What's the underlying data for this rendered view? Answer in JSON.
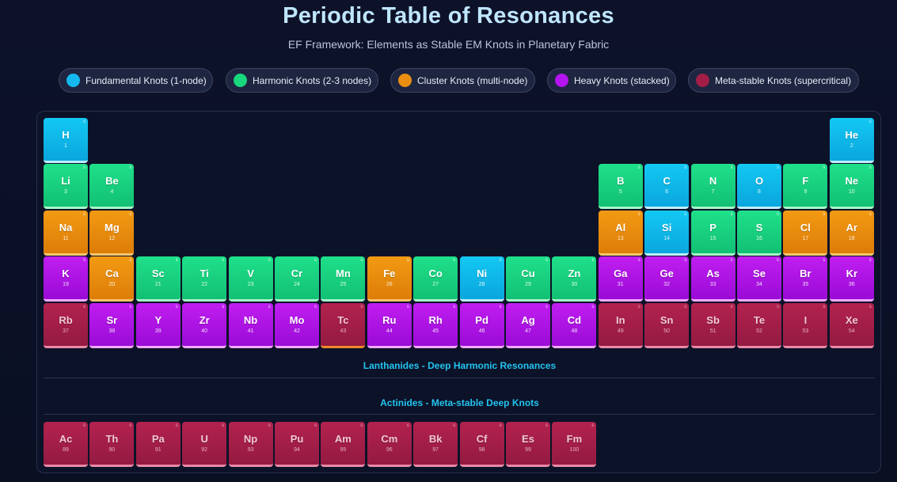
{
  "header": {
    "title": "Periodic Table of Resonances",
    "subtitle": "EF Framework: Elements as Stable EM Knots in Planetary Fabric"
  },
  "legend": [
    {
      "label": "Fundamental Knots (1-node)",
      "color": "#14b8ef"
    },
    {
      "label": "Harmonic Knots (2-3 nodes)",
      "color": "#19d77e"
    },
    {
      "label": "Cluster Knots (multi-node)",
      "color": "#ea8f12"
    },
    {
      "label": "Heavy Knots (stacked)",
      "color": "#b314ef"
    },
    {
      "label": "Meta-stable Knots (supercritical)",
      "color": "#a21d47"
    }
  ],
  "sections": {
    "lanthanides": "Lanthanides - Deep Harmonic Resonances",
    "actinides": "Actinides - Meta-stable Deep Knots"
  },
  "rows": [
    [
      {
        "symbol": "H",
        "number": "1",
        "type": "fundamental",
        "mark": "s"
      },
      {
        "symbol": "He",
        "number": "2",
        "type": "fundamental",
        "mark": "s"
      }
    ],
    [
      {
        "symbol": "Li",
        "number": "3",
        "type": "harmonic",
        "mark": "s"
      },
      {
        "symbol": "Be",
        "number": "4",
        "type": "harmonic",
        "mark": "s"
      },
      {
        "symbol": "B",
        "number": "5",
        "type": "harmonic",
        "mark": "s"
      },
      {
        "symbol": "C",
        "number": "6",
        "type": "fundamental",
        "mark": "s"
      },
      {
        "symbol": "N",
        "number": "7",
        "type": "harmonic",
        "mark": "s"
      },
      {
        "symbol": "O",
        "number": "8",
        "type": "fundamental",
        "mark": "s"
      },
      {
        "symbol": "F",
        "number": "9",
        "type": "harmonic",
        "mark": "s"
      },
      {
        "symbol": "Ne",
        "number": "10",
        "type": "harmonic",
        "mark": "s"
      }
    ],
    [
      {
        "symbol": "Na",
        "number": "11",
        "type": "cluster",
        "mark": "s"
      },
      {
        "symbol": "Mg",
        "number": "12",
        "type": "cluster",
        "mark": "s"
      },
      {
        "symbol": "Al",
        "number": "13",
        "type": "cluster",
        "mark": "s"
      },
      {
        "symbol": "Si",
        "number": "14",
        "type": "fundamental",
        "mark": "s"
      },
      {
        "symbol": "P",
        "number": "15",
        "type": "harmonic",
        "mark": "s"
      },
      {
        "symbol": "S",
        "number": "16",
        "type": "harmonic",
        "mark": "s"
      },
      {
        "symbol": "Cl",
        "number": "17",
        "type": "cluster",
        "mark": "s"
      },
      {
        "symbol": "Ar",
        "number": "18",
        "type": "cluster",
        "mark": "s"
      }
    ],
    [
      {
        "symbol": "K",
        "number": "19",
        "type": "heavy",
        "mark": "s"
      },
      {
        "symbol": "Ca",
        "number": "20",
        "type": "cluster",
        "mark": "s"
      },
      {
        "symbol": "Sc",
        "number": "21",
        "type": "harmonic",
        "mark": "s"
      },
      {
        "symbol": "Ti",
        "number": "22",
        "type": "harmonic",
        "mark": "s"
      },
      {
        "symbol": "V",
        "number": "23",
        "type": "harmonic",
        "mark": "s"
      },
      {
        "symbol": "Cr",
        "number": "24",
        "type": "harmonic",
        "mark": "s"
      },
      {
        "symbol": "Mn",
        "number": "25",
        "type": "harmonic",
        "mark": "s"
      },
      {
        "symbol": "Fe",
        "number": "26",
        "type": "cluster",
        "mark": "s"
      },
      {
        "symbol": "Co",
        "number": "27",
        "type": "harmonic",
        "mark": "s"
      },
      {
        "symbol": "Ni",
        "number": "28",
        "type": "fundamental",
        "mark": "s"
      },
      {
        "symbol": "Cu",
        "number": "29",
        "type": "harmonic",
        "mark": "s"
      },
      {
        "symbol": "Zn",
        "number": "30",
        "type": "harmonic",
        "mark": "s"
      },
      {
        "symbol": "Ga",
        "number": "31",
        "type": "heavy",
        "mark": "s"
      },
      {
        "symbol": "Ge",
        "number": "32",
        "type": "heavy",
        "mark": "s"
      },
      {
        "symbol": "As",
        "number": "33",
        "type": "heavy",
        "mark": "s"
      },
      {
        "symbol": "Se",
        "number": "34",
        "type": "heavy",
        "mark": "s"
      },
      {
        "symbol": "Br",
        "number": "35",
        "type": "heavy",
        "mark": "s"
      },
      {
        "symbol": "Kr",
        "number": "36",
        "type": "heavy",
        "mark": "s"
      }
    ],
    [
      {
        "symbol": "Rb",
        "number": "37",
        "type": "metastable",
        "mark": "s"
      },
      {
        "symbol": "Sr",
        "number": "38",
        "type": "heavy",
        "mark": "s"
      },
      {
        "symbol": "Y",
        "number": "39",
        "type": "heavy",
        "mark": "s"
      },
      {
        "symbol": "Zr",
        "number": "40",
        "type": "heavy",
        "mark": "s"
      },
      {
        "symbol": "Nb",
        "number": "41",
        "type": "heavy",
        "mark": "s"
      },
      {
        "symbol": "Mo",
        "number": "42",
        "type": "heavy",
        "mark": "s"
      },
      {
        "symbol": "Tc",
        "number": "43",
        "type": "metastable",
        "mark": "s"
      },
      {
        "symbol": "Ru",
        "number": "44",
        "type": "heavy",
        "mark": "s"
      },
      {
        "symbol": "Rh",
        "number": "45",
        "type": "heavy",
        "mark": "s"
      },
      {
        "symbol": "Pd",
        "number": "46",
        "type": "heavy",
        "mark": "s"
      },
      {
        "symbol": "Ag",
        "number": "47",
        "type": "heavy",
        "mark": "s"
      },
      {
        "symbol": "Cd",
        "number": "48",
        "type": "heavy",
        "mark": "s"
      },
      {
        "symbol": "In",
        "number": "49",
        "type": "metastable",
        "mark": "s"
      },
      {
        "symbol": "Sn",
        "number": "50",
        "type": "metastable",
        "mark": "s"
      },
      {
        "symbol": "Sb",
        "number": "51",
        "type": "metastable",
        "mark": "s"
      },
      {
        "symbol": "Te",
        "number": "52",
        "type": "metastable",
        "mark": "s"
      },
      {
        "symbol": "I",
        "number": "53",
        "type": "metastable",
        "mark": "s"
      },
      {
        "symbol": "Xe",
        "number": "54",
        "type": "metastable",
        "mark": "s"
      }
    ]
  ],
  "actinides": [
    {
      "symbol": "Ac",
      "number": "89",
      "type": "metastable",
      "mark": "s"
    },
    {
      "symbol": "Th",
      "number": "90",
      "type": "metastable",
      "mark": "s"
    },
    {
      "symbol": "Pa",
      "number": "91",
      "type": "metastable",
      "mark": "s"
    },
    {
      "symbol": "U",
      "number": "92",
      "type": "metastable",
      "mark": "s"
    },
    {
      "symbol": "Np",
      "number": "93",
      "type": "metastable",
      "mark": "s"
    },
    {
      "symbol": "Pu",
      "number": "94",
      "type": "metastable",
      "mark": "s"
    },
    {
      "symbol": "Am",
      "number": "95",
      "type": "metastable",
      "mark": "s"
    },
    {
      "symbol": "Cm",
      "number": "96",
      "type": "metastable",
      "mark": "s"
    },
    {
      "symbol": "Bk",
      "number": "97",
      "type": "metastable",
      "mark": "s"
    },
    {
      "symbol": "Cf",
      "number": "98",
      "type": "metastable",
      "mark": "s"
    },
    {
      "symbol": "Es",
      "number": "99",
      "type": "metastable",
      "mark": "s"
    },
    {
      "symbol": "Fm",
      "number": "100",
      "type": "metastable",
      "mark": "s"
    }
  ]
}
